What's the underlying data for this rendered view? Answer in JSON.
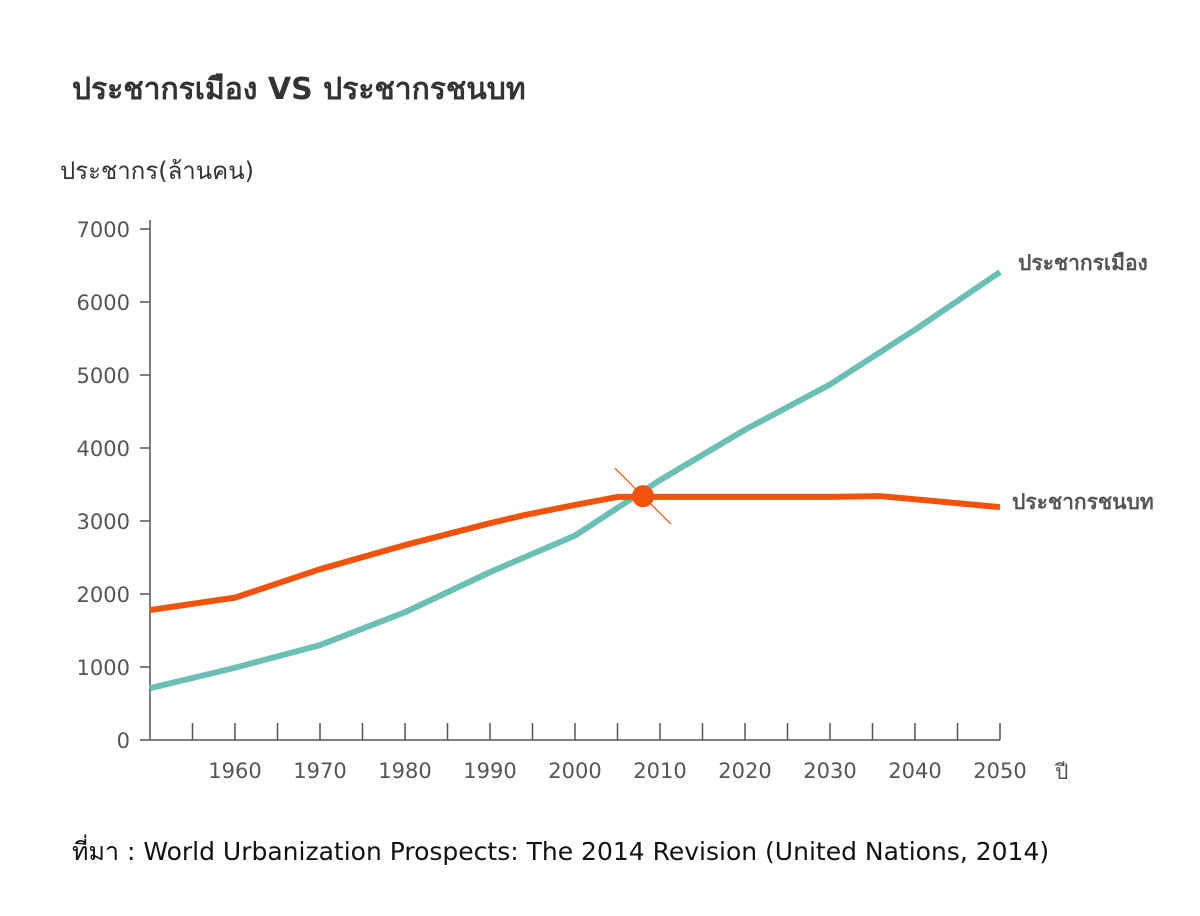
{
  "chart_data": {
    "type": "line",
    "title": "ประชากรเมือง VS ประชากรชนบท",
    "ylabel": "ประชากร(ล้านคน)",
    "xlabel": "ปี",
    "xlim": [
      1950,
      2050
    ],
    "ylim": [
      0,
      7000
    ],
    "x_ticks": [
      "1960",
      "1970",
      "1980",
      "1990",
      "2000",
      "2010",
      "2020",
      "2030",
      "2040",
      "2050"
    ],
    "y_ticks": [
      "0",
      "1000",
      "2000",
      "3000",
      "4000",
      "5000",
      "6000",
      "7000"
    ],
    "grid": false,
    "series": [
      {
        "name": "ประชากรเมือง",
        "color": "#6cbfb4",
        "x": [
          1950,
          1960,
          1970,
          1980,
          1990,
          2000,
          2010,
          2020,
          2030,
          2040,
          2050
        ],
        "values": [
          710,
          990,
          1300,
          1750,
          2300,
          2800,
          3560,
          4250,
          4870,
          5620,
          6410
        ]
      },
      {
        "name": "ประชากรชนบท",
        "color": "#f2520a",
        "x": [
          1950,
          1960,
          1970,
          1980,
          1990,
          1994,
          2000,
          2005,
          2010,
          2020,
          2030,
          2036,
          2050
        ],
        "values": [
          1780,
          1950,
          2340,
          2670,
          2970,
          3080,
          3220,
          3330,
          3330,
          3330,
          3330,
          3340,
          3190
        ]
      }
    ],
    "annotation": {
      "type": "crossover-marker",
      "x": 2008,
      "y": 3340,
      "color": "#f2520a"
    },
    "source": "ที่มา : World Urbanization Prospects: The 2014 Revision (United Nations, 2014)"
  }
}
